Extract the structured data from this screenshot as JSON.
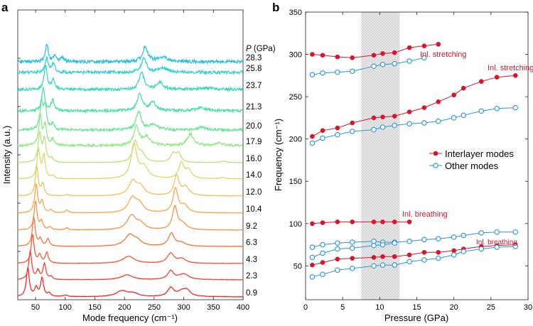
{
  "chart_data": [
    {
      "panel": "a",
      "type": "line",
      "xlabel": "Mode frequency (cm⁻¹)",
      "ylabel": "Intensity (a.u.)",
      "xlim": [
        20,
        400
      ],
      "xticks": [
        "50",
        "100",
        "150",
        "200",
        "250",
        "300",
        "350",
        "400"
      ],
      "legend_title": "P (GPa)",
      "series": [
        {
          "name": "0.9",
          "color": "#ff1a1a",
          "peaks": [
            [
              37,
              1.0,
              3
            ],
            [
              51,
              0.3,
              3
            ],
            [
              61,
              0.65,
              3
            ],
            [
              73,
              0.12,
              3
            ],
            [
              100,
              0.05,
              5
            ],
            [
              196,
              0.2,
              12
            ],
            [
              215,
              0.1,
              10
            ],
            [
              278,
              0.3,
              6
            ],
            [
              298,
              0.2,
              10
            ],
            [
              306,
              0.15,
              6
            ]
          ]
        },
        {
          "name": "2.3",
          "color": "#ff3322",
          "peaks": [
            [
              41,
              1.0,
              3
            ],
            [
              54,
              0.3,
              3
            ],
            [
              65,
              0.55,
              3
            ],
            [
              76,
              0.1,
              3
            ],
            [
              204,
              0.17,
              12
            ],
            [
              278,
              0.3,
              6
            ],
            [
              300,
              0.2,
              10
            ]
          ]
        },
        {
          "name": "4.3",
          "color": "#ff4a26",
          "peaks": [
            [
              45,
              1.0,
              3
            ],
            [
              57,
              0.28,
              3
            ],
            [
              69,
              0.38,
              3
            ],
            [
              207,
              0.25,
              12
            ],
            [
              278,
              0.35,
              7
            ],
            [
              297,
              0.15,
              8
            ]
          ]
        },
        {
          "name": "6.3",
          "color": "#ff6a2a",
          "peaks": [
            [
              47,
              1.0,
              3
            ],
            [
              58,
              0.25,
              3
            ],
            [
              71,
              0.25,
              3
            ],
            [
              209,
              0.4,
              10
            ],
            [
              222,
              0.15,
              8
            ],
            [
              279,
              0.45,
              6
            ],
            [
              296,
              0.12,
              8
            ]
          ]
        },
        {
          "name": "9.2",
          "color": "#ff8a35",
          "peaks": [
            [
              50,
              1.0,
              3
            ],
            [
              60,
              0.3,
              3
            ],
            [
              74,
              0.1,
              3
            ],
            [
              103,
              0.08,
              3
            ],
            [
              212,
              0.5,
              9
            ],
            [
              227,
              0.2,
              8
            ],
            [
              285,
              0.8,
              5
            ],
            [
              298,
              0.2,
              8
            ]
          ]
        },
        {
          "name": "10.4",
          "color": "#ffa040",
          "peaks": [
            [
              51,
              1.0,
              3
            ],
            [
              61,
              0.4,
              3
            ],
            [
              76,
              0.1,
              3
            ],
            [
              103,
              0.1,
              3
            ],
            [
              213,
              0.5,
              8
            ],
            [
              225,
              0.3,
              8
            ],
            [
              286,
              0.85,
              5
            ],
            [
              301,
              0.25,
              7
            ]
          ]
        },
        {
          "name": "12.0",
          "color": "#f0c050",
          "peaks": [
            [
              52,
              1.0,
              3
            ],
            [
              62,
              0.4,
              3
            ],
            [
              103,
              0.05,
              3
            ],
            [
              214,
              0.5,
              8
            ],
            [
              227,
              0.3,
              8
            ],
            [
              288,
              0.7,
              5
            ],
            [
              303,
              0.3,
              7
            ]
          ]
        },
        {
          "name": "14.0",
          "color": "#d8d860",
          "peaks": [
            [
              55,
              1.0,
              3
            ],
            [
              64,
              0.8,
              3
            ],
            [
              79,
              0.1,
              3
            ],
            [
              216,
              1.2,
              6
            ],
            [
              233,
              0.4,
              8
            ],
            [
              296,
              0.55,
              5
            ],
            [
              308,
              0.3,
              6
            ],
            [
              365,
              0.05,
              5
            ]
          ]
        },
        {
          "name": "16.0",
          "color": "#b8e070",
          "peaks": [
            [
              57,
              1.0,
              3
            ],
            [
              65,
              0.8,
              3
            ],
            [
              77,
              0.15,
              3
            ],
            [
              218,
              0.7,
              5
            ],
            [
              229,
              0.3,
              7
            ],
            [
              282,
              0.3,
              5
            ],
            [
              291,
              0.3,
              5
            ],
            [
              367,
              0.05,
              6
            ]
          ]
        },
        {
          "name": "17.9",
          "color": "#8ee880",
          "peaks": [
            [
              58,
              1.0,
              3
            ],
            [
              66,
              0.7,
              3
            ],
            [
              79,
              0.2,
              3
            ],
            [
              220,
              0.65,
              5
            ],
            [
              237,
              0.3,
              8
            ],
            [
              311,
              0.4,
              6
            ],
            [
              360,
              0.08,
              8
            ]
          ]
        },
        {
          "name": "20.0",
          "color": "#5ee890",
          "peaks": [
            [
              60,
              0.9,
              3
            ],
            [
              66,
              0.8,
              3
            ],
            [
              79,
              0.2,
              3
            ],
            [
              224,
              0.65,
              5
            ],
            [
              249,
              0.2,
              8
            ],
            [
              330,
              0.1,
              8
            ]
          ]
        },
        {
          "name": "21.3",
          "color": "#3ee0a0",
          "peaks": [
            [
              63,
              0.8,
              3
            ],
            [
              79,
              0.4,
              3
            ],
            [
              226,
              0.6,
              5
            ],
            [
              248,
              0.3,
              6
            ],
            [
              330,
              0.1,
              10
            ]
          ]
        },
        {
          "name": "23.7",
          "color": "#30d8b8",
          "peaks": [
            [
              67,
              0.85,
              3
            ],
            [
              80,
              0.35,
              3
            ],
            [
              229,
              0.6,
              5
            ],
            [
              260,
              0.25,
              6
            ],
            [
              340,
              0.05,
              15
            ]
          ]
        },
        {
          "name": "25.8",
          "color": "#28d0d8",
          "peaks": [
            [
              69,
              0.5,
              3
            ],
            [
              80,
              0.3,
              3
            ],
            [
              233,
              0.5,
              5
            ],
            [
              265,
              0.15,
              10
            ]
          ]
        },
        {
          "name": "28.3",
          "color": "#20c0e0",
          "peaks": [
            [
              69,
              0.6,
              3
            ],
            [
              83,
              0.2,
              3
            ],
            [
              95,
              0.15,
              3
            ],
            [
              235,
              0.55,
              5
            ],
            [
              265,
              0.15,
              10
            ]
          ]
        }
      ]
    },
    {
      "panel": "b",
      "type": "line",
      "xlabel": "Pressure (GPa)",
      "ylabel": "Frequency (cm⁻¹)",
      "xlim": [
        0,
        30
      ],
      "ylim": [
        10,
        350
      ],
      "xticks": [
        0,
        5,
        10,
        15,
        20,
        25,
        30
      ],
      "yticks": [
        50,
        100,
        150,
        200,
        250,
        300,
        350
      ],
      "shaded_range": [
        7.5,
        12.7
      ],
      "legend": {
        "position": "right",
        "entries": [
          "Interlayer modes",
          "Other modes"
        ]
      },
      "colors": {
        "interlayer": "#d9152c",
        "other": "#2a95d8"
      },
      "annotations": [
        "Inl. stretching",
        "Inl. stretching",
        "Inl. breathing",
        "Inl. breathing"
      ],
      "series": [
        {
          "kind": "interlayer",
          "x": [
            0.9,
            2.3,
            4.3,
            6.3,
            9.2,
            10.4,
            12.0,
            14.0,
            16.0,
            17.9
          ],
          "y": [
            300,
            299,
            297,
            296,
            299,
            301,
            302,
            308,
            310,
            312
          ]
        },
        {
          "kind": "other",
          "x": [
            0.9,
            2.3,
            4.3,
            6.3,
            9.2,
            10.4,
            12.0,
            14.0,
            16.0
          ],
          "y": [
            276,
            278,
            279,
            280,
            286,
            288,
            289,
            292,
            296
          ]
        },
        {
          "kind": "interlayer",
          "x": [
            0.9,
            2.3,
            4.3,
            6.3,
            9.2,
            10.4,
            12.0,
            14.0,
            16.0,
            17.9,
            20.0,
            21.3,
            23.7,
            25.8,
            28.3
          ],
          "y": [
            203,
            210,
            213,
            219,
            225,
            226,
            227,
            232,
            237,
            244,
            252,
            260,
            268,
            273,
            275
          ]
        },
        {
          "kind": "other",
          "x": [
            0.9,
            2.3,
            4.3,
            6.3,
            9.2,
            10.4,
            12.0,
            14.0,
            16.0,
            17.9,
            20.0,
            21.3,
            23.7,
            25.8,
            28.3
          ],
          "y": [
            195,
            201,
            205,
            209,
            211,
            214,
            216,
            218,
            219,
            221,
            225,
            228,
            233,
            236,
            237
          ]
        },
        {
          "kind": "interlayer",
          "x": [
            0.9,
            2.3,
            4.3,
            6.3,
            9.2,
            10.4,
            12.0,
            14.0
          ],
          "y": [
            100,
            101,
            102,
            102,
            102,
            102,
            102,
            102
          ]
        },
        {
          "kind": "other",
          "x": [
            0.9,
            2.3,
            4.3,
            6.3,
            9.2,
            10.4,
            12.0,
            14.0,
            16.0,
            17.9,
            20.0,
            21.3,
            23.7,
            25.8,
            28.3
          ],
          "y": [
            72,
            75,
            77,
            78,
            79,
            78,
            78,
            79,
            81,
            82,
            84,
            86,
            89,
            90,
            90
          ]
        },
        {
          "kind": "other",
          "x": [
            0.9,
            2.3,
            4.3,
            6.3,
            9.2,
            10.4,
            12.0
          ],
          "y": [
            60,
            65,
            70,
            71,
            74,
            75,
            77
          ]
        },
        {
          "kind": "interlayer",
          "x": [
            0.9,
            2.3,
            4.3,
            6.3,
            9.2,
            10.4,
            12.0,
            14.0,
            16.0,
            17.9,
            20.0,
            21.3,
            23.7,
            25.8,
            28.3
          ],
          "y": [
            51,
            54,
            58,
            59,
            60,
            61,
            61,
            63,
            66,
            66,
            68,
            70,
            73,
            74,
            75
          ]
        },
        {
          "kind": "other",
          "x": [
            0.9,
            2.3,
            4.3,
            6.3,
            9.2,
            10.4,
            12.0,
            14.0,
            16.0,
            17.9,
            20.0,
            21.3,
            23.7,
            25.8,
            28.3
          ],
          "y": [
            37,
            40,
            45,
            47,
            50,
            51,
            51,
            55,
            57,
            59,
            63,
            67,
            70,
            72,
            73
          ]
        }
      ]
    }
  ],
  "panel_labels": [
    "a",
    "b"
  ]
}
